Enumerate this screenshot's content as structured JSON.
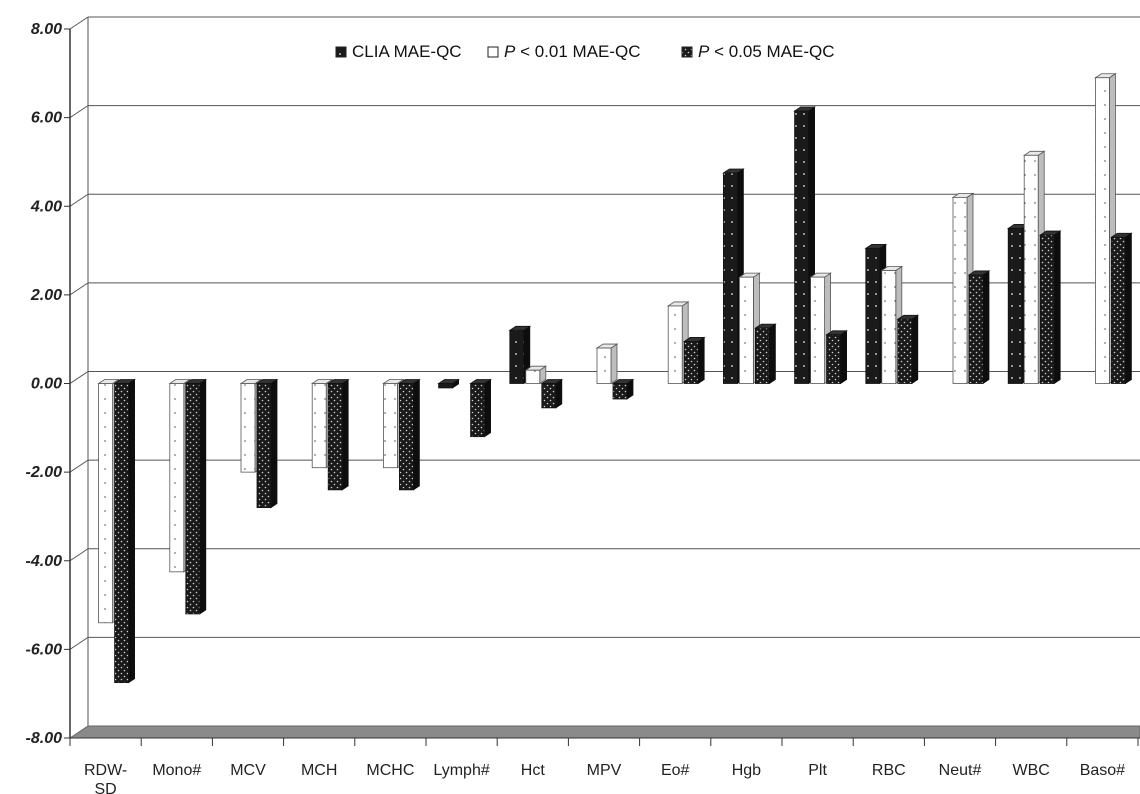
{
  "chart_data": {
    "type": "bar",
    "categories": [
      "RDW-SD",
      "Mono#",
      "MCV",
      "MCH",
      "MCHC",
      "Lymph#",
      "Hct",
      "MPV",
      "Eo#",
      "Hgb",
      "Plt",
      "RBC",
      "Neut#",
      "WBC",
      "Baso#"
    ],
    "series": [
      {
        "name": "CLIA MAE-QC",
        "values": [
          0,
          0,
          0,
          0,
          0,
          -0.1,
          1.2,
          0,
          0,
          4.75,
          6.15,
          3.05,
          0,
          3.5,
          0
        ]
      },
      {
        "name": "P < 0.01 MAE-QC",
        "values": [
          -5.4,
          -4.25,
          -2.0,
          -1.9,
          -1.9,
          0,
          0.3,
          0.8,
          1.75,
          2.4,
          2.4,
          2.55,
          4.2,
          5.15,
          6.9
        ]
      },
      {
        "name": "P < 0.05 MAE-QC",
        "values": [
          -6.75,
          -5.2,
          -2.8,
          -2.4,
          -2.4,
          -1.2,
          -0.55,
          -0.35,
          0.95,
          1.25,
          1.1,
          1.45,
          2.45,
          3.35,
          3.3
        ]
      }
    ],
    "legend": [
      {
        "prefix": "",
        "italic": "",
        "text": "CLIA MAE-QC"
      },
      {
        "prefix": "",
        "italic": "P",
        "text": " < 0.01 MAE-QC"
      },
      {
        "prefix": "",
        "italic": "P",
        "text": " < 0.05 MAE-QC"
      }
    ],
    "ylim": [
      -8,
      8
    ],
    "yticks": [
      8,
      6,
      4,
      2,
      0,
      -2,
      -4,
      -6,
      -8
    ],
    "ytick_labels": [
      "8.00",
      "6.00",
      "4.00",
      "2.00",
      "0.00",
      "-2.00",
      "-4.00",
      "-6.00",
      "-8.00"
    ],
    "grid": true,
    "legend_position": "top-center",
    "colors": {
      "clia": "#1a1a1a",
      "p01": "#ffffff",
      "p05": "#1a1a1a",
      "floor": "#8a8a8a",
      "grid": "#555555"
    }
  }
}
